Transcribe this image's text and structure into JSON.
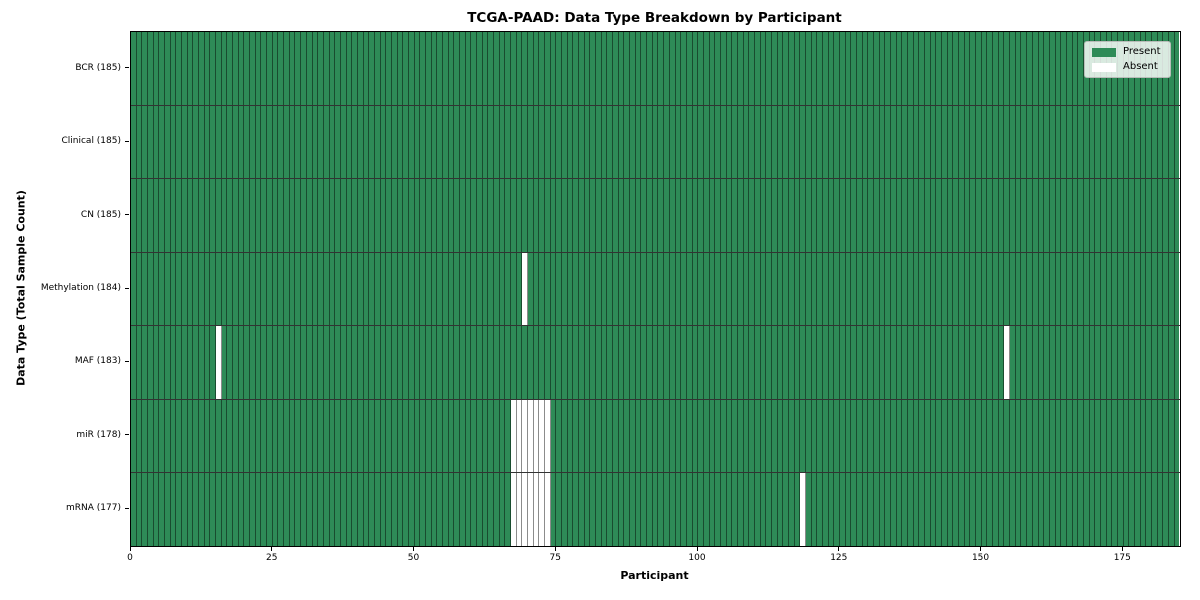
{
  "chart_data": {
    "type": "heatmap",
    "title": "TCGA-PAAD: Data Type Breakdown by Participant",
    "xlabel": "Participant",
    "ylabel": "Data Type (Total Sample Count)",
    "n_participants": 185,
    "x_ticks": [
      0,
      25,
      50,
      75,
      100,
      125,
      150,
      175
    ],
    "xlim": [
      0,
      185
    ],
    "grid": "cell-borders",
    "legend_position": "upper-right",
    "legend": [
      {
        "label": "Present",
        "color": "#2e8b57"
      },
      {
        "label": "Absent",
        "color": "#ffffff"
      }
    ],
    "rows": [
      {
        "label": "BCR (185)",
        "data_type": "BCR",
        "present_count": 185,
        "absent_participants": []
      },
      {
        "label": "Clinical (185)",
        "data_type": "Clinical",
        "present_count": 185,
        "absent_participants": []
      },
      {
        "label": "CN (185)",
        "data_type": "CN",
        "present_count": 185,
        "absent_participants": []
      },
      {
        "label": "Methylation (184)",
        "data_type": "Methylation",
        "present_count": 184,
        "absent_participants": [
          69
        ]
      },
      {
        "label": "MAF (183)",
        "data_type": "MAF",
        "present_count": 183,
        "absent_participants": [
          15,
          154
        ]
      },
      {
        "label": "miR (178)",
        "data_type": "miR",
        "present_count": 178,
        "absent_participants": [
          67,
          68,
          69,
          70,
          71,
          72,
          73
        ]
      },
      {
        "label": "mRNA (177)",
        "data_type": "mRNA",
        "present_count": 177,
        "absent_participants": [
          67,
          68,
          69,
          70,
          71,
          72,
          73,
          118
        ]
      }
    ],
    "colors": {
      "present": "#2e8b57",
      "absent": "#ffffff",
      "cell_border": "rgba(0,0,0,0.45)",
      "row_separator": "rgba(0,0,0,0.8)",
      "spine": "#000000"
    }
  }
}
